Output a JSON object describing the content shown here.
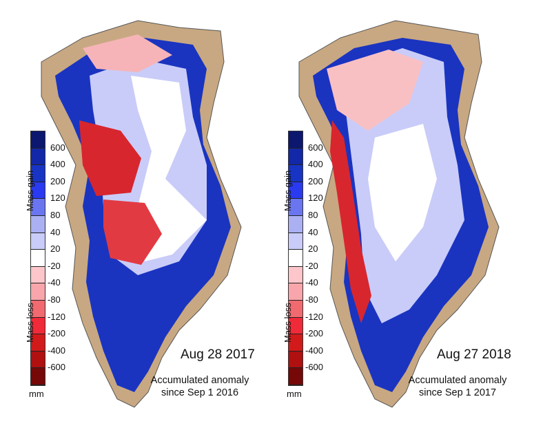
{
  "legend": {
    "ticks": [
      "600",
      "400",
      "200",
      "120",
      "80",
      "40",
      "20",
      "-20",
      "-40",
      "-80",
      "-120",
      "-200",
      "-400",
      "-600"
    ],
    "colors": [
      "#0c1770",
      "#1228a8",
      "#1834c4",
      "#2a3af0",
      "#6a76f0",
      "#aab0f2",
      "#c9ccf8",
      "#ffffff",
      "#fcc6ca",
      "#f8a6ab",
      "#f06a70",
      "#f02a38",
      "#d21a1a",
      "#b01010",
      "#760808"
    ],
    "gain_label": "Mass gain",
    "loss_label": "Mass loss",
    "unit": "mm"
  },
  "land_color": "#c8a882",
  "panels": [
    {
      "date": "Aug 28 2017",
      "caption_line1": "Accumulated anomaly",
      "caption_line2": "since Sep 1 2016"
    },
    {
      "date": "Aug 27 2018",
      "caption_line1": "Accumulated anomaly",
      "caption_line2": "since Sep 1 2017"
    }
  ]
}
